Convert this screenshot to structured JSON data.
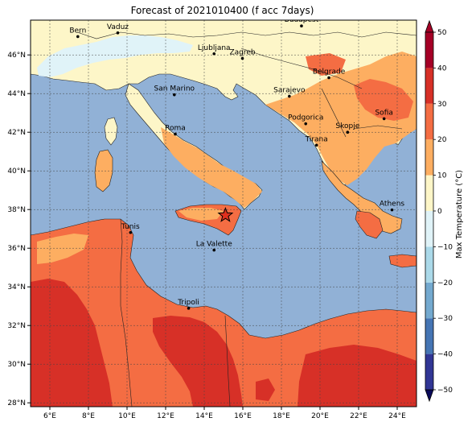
{
  "title": "Forecast of 2021010400 (f acc 7days)",
  "map": {
    "lon_range": [
      5,
      25
    ],
    "lat_range": [
      27.8,
      47.8
    ],
    "lon_ticks": [
      "6°E",
      "8°E",
      "10°E",
      "12°E",
      "14°E",
      "16°E",
      "18°E",
      "20°E",
      "22°E",
      "24°E"
    ],
    "lat_ticks": [
      "28°N",
      "30°N",
      "32°N",
      "34°N",
      "36°N",
      "38°N",
      "40°N",
      "42°N",
      "44°N",
      "46°N"
    ],
    "cities": [
      {
        "name": "Bern",
        "lon": 7.45,
        "lat": 46.95
      },
      {
        "name": "Vaduz",
        "lon": 9.52,
        "lat": 47.14
      },
      {
        "name": "Budapest",
        "lon": 19.04,
        "lat": 47.5
      },
      {
        "name": "Ljubljana",
        "lon": 14.51,
        "lat": 46.06
      },
      {
        "name": "Zagreb",
        "lon": 15.98,
        "lat": 45.82
      },
      {
        "name": "Belgrade",
        "lon": 20.46,
        "lat": 44.82
      },
      {
        "name": "San Marino",
        "lon": 12.45,
        "lat": 43.94
      },
      {
        "name": "Sarajevo",
        "lon": 18.41,
        "lat": 43.86
      },
      {
        "name": "Sofia",
        "lon": 23.32,
        "lat": 42.7
      },
      {
        "name": "Podgorica",
        "lon": 19.26,
        "lat": 42.44
      },
      {
        "name": "Skopje",
        "lon": 21.43,
        "lat": 42.0
      },
      {
        "name": "Roma",
        "lon": 12.5,
        "lat": 41.9
      },
      {
        "name": "Tirana",
        "lon": 19.82,
        "lat": 41.33
      },
      {
        "name": "Athens",
        "lon": 23.73,
        "lat": 37.98
      },
      {
        "name": "Tunis",
        "lon": 10.18,
        "lat": 36.81
      },
      {
        "name": "La Valette",
        "lon": 14.51,
        "lat": 35.9
      },
      {
        "name": "Tripoli",
        "lon": 13.19,
        "lat": 32.89
      }
    ],
    "marker": {
      "symbol": "star",
      "lon": 15.1,
      "lat": 37.7
    }
  },
  "colorbar": {
    "label": "Max Temperature (°C)",
    "ticks": [
      "−50",
      "−40",
      "−30",
      "−20",
      "−10",
      "0",
      "10",
      "20",
      "30",
      "40",
      "50"
    ],
    "levels": [
      {
        "from": -50,
        "to": -40,
        "color": "#313695"
      },
      {
        "from": -40,
        "to": -30,
        "color": "#4575b4"
      },
      {
        "from": -30,
        "to": -20,
        "color": "#74a9cf"
      },
      {
        "from": -20,
        "to": -10,
        "color": "#abd9e9"
      },
      {
        "from": -10,
        "to": 0,
        "color": "#e0f3f8"
      },
      {
        "from": 0,
        "to": 10,
        "color": "#fdf6c8"
      },
      {
        "from": 10,
        "to": 20,
        "color": "#fdae61"
      },
      {
        "from": 20,
        "to": 30,
        "color": "#f46d43"
      },
      {
        "from": 30,
        "to": 40,
        "color": "#d73027"
      },
      {
        "from": 40,
        "to": 50,
        "color": "#a50026"
      }
    ]
  }
}
